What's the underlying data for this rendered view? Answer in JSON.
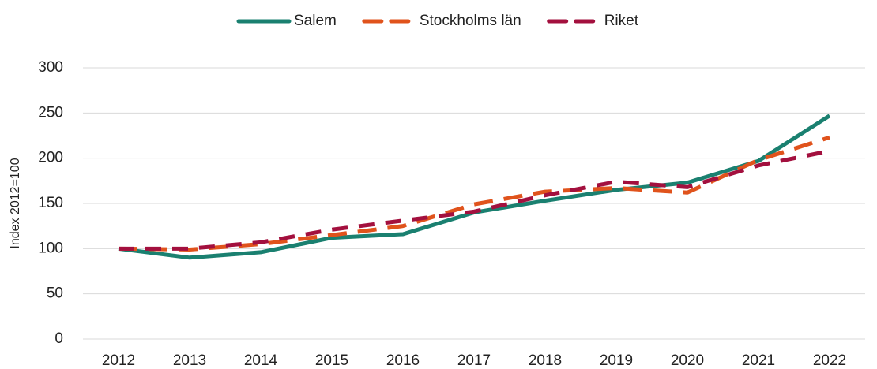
{
  "chart_data": {
    "type": "line",
    "y_label": "Index 2012=100",
    "categories": [
      "2012",
      "2013",
      "2014",
      "2015",
      "2016",
      "2017",
      "2018",
      "2019",
      "2020",
      "2021",
      "2022"
    ],
    "series": [
      {
        "name": "Salem",
        "color": "#1a8070",
        "dash": "none",
        "values": [
          100,
          90,
          96,
          112,
          116,
          140,
          153,
          165,
          173,
          197,
          247
        ]
      },
      {
        "name": "Stockholms län",
        "color": "#e0531c",
        "dash": "24 14",
        "values": [
          100,
          99,
          105,
          115,
          125,
          149,
          163,
          167,
          162,
          198,
          223
        ]
      },
      {
        "name": "Riket",
        "color": "#a3103e",
        "dash": "20 14",
        "values": [
          100,
          100,
          107,
          121,
          131,
          141,
          159,
          174,
          168,
          192,
          208
        ]
      }
    ],
    "ylim": [
      0,
      300
    ],
    "yticks": [
      0,
      50,
      100,
      150,
      200,
      250,
      300
    ],
    "grid": true,
    "legend": "top"
  }
}
